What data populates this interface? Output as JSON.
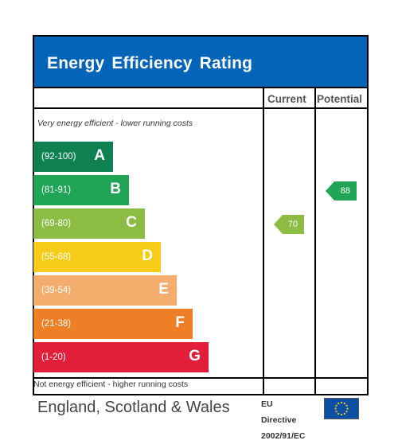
{
  "header": {
    "title": "Energy Efficiency Rating"
  },
  "columns": {
    "current": "Current",
    "potential": "Potential"
  },
  "captions": {
    "top": "Very energy efficient - lower running costs",
    "bottom": "Not energy efficient - higher running costs"
  },
  "footer": {
    "region": "England, Scotland & Wales",
    "directive_line1": "EU",
    "directive_line2": "Directive",
    "directive_line3": "2002/91/EC"
  },
  "colors": {
    "header": "#0464b8",
    "A": "#0f8150",
    "B": "#20a556",
    "C": "#8cbc44",
    "D": "#f6cc16",
    "E": "#f5ad6e",
    "F": "#ee7f26",
    "G": "#e21e3b"
  },
  "chart_data": {
    "type": "bar",
    "title": "Energy Efficiency Rating",
    "bands": [
      {
        "range": "(92-100)",
        "letter": "A",
        "color": "#0f8150"
      },
      {
        "range": "(81-91)",
        "letter": "B",
        "color": "#20a556"
      },
      {
        "range": "(69-80)",
        "letter": "C",
        "color": "#8cbc44"
      },
      {
        "range": "(55-68)",
        "letter": "D",
        "color": "#f6cc16"
      },
      {
        "range": "(39-54)",
        "letter": "E",
        "color": "#f5ad6e"
      },
      {
        "range": "(21-38)",
        "letter": "F",
        "color": "#ee7f26"
      },
      {
        "range": "(1-20)",
        "letter": "G",
        "color": "#e21e3b"
      }
    ],
    "current": {
      "value": 70,
      "band": "C"
    },
    "potential": {
      "value": 88,
      "band": "B"
    }
  }
}
